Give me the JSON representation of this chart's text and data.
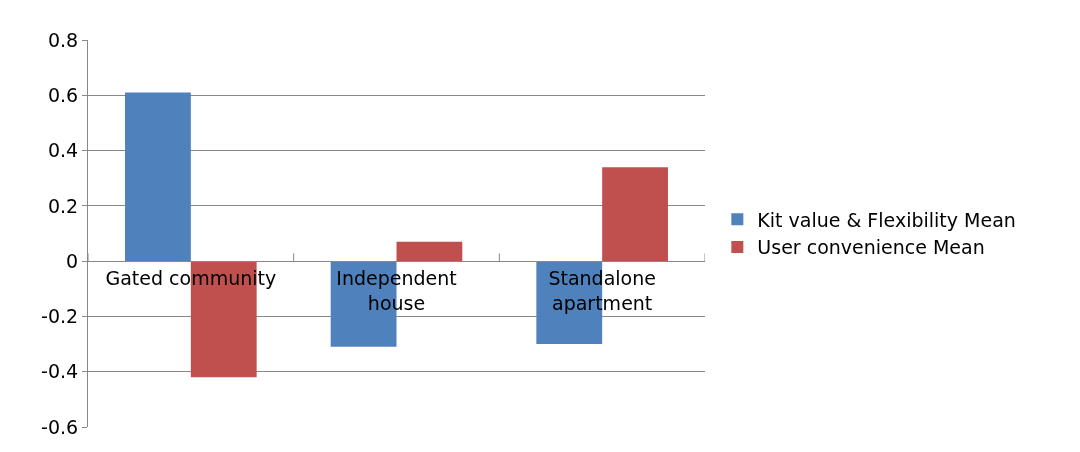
{
  "chart_data": {
    "type": "bar",
    "categories": [
      "Gated community",
      "Independent house",
      "Standalone apartment"
    ],
    "series": [
      {
        "name": "Kit value & Flexibility Mean",
        "color": "#4f81bd",
        "values": [
          0.61,
          -0.31,
          -0.3
        ]
      },
      {
        "name": "User convenience Mean",
        "color": "#c0504d",
        "values": [
          -0.42,
          0.07,
          0.34
        ]
      }
    ],
    "ylim": [
      -0.6,
      0.8
    ],
    "yticks": [
      -0.6,
      -0.4,
      -0.2,
      0,
      0.2,
      0.4,
      0.6,
      0.8
    ],
    "grid": "y",
    "legend": "right"
  }
}
